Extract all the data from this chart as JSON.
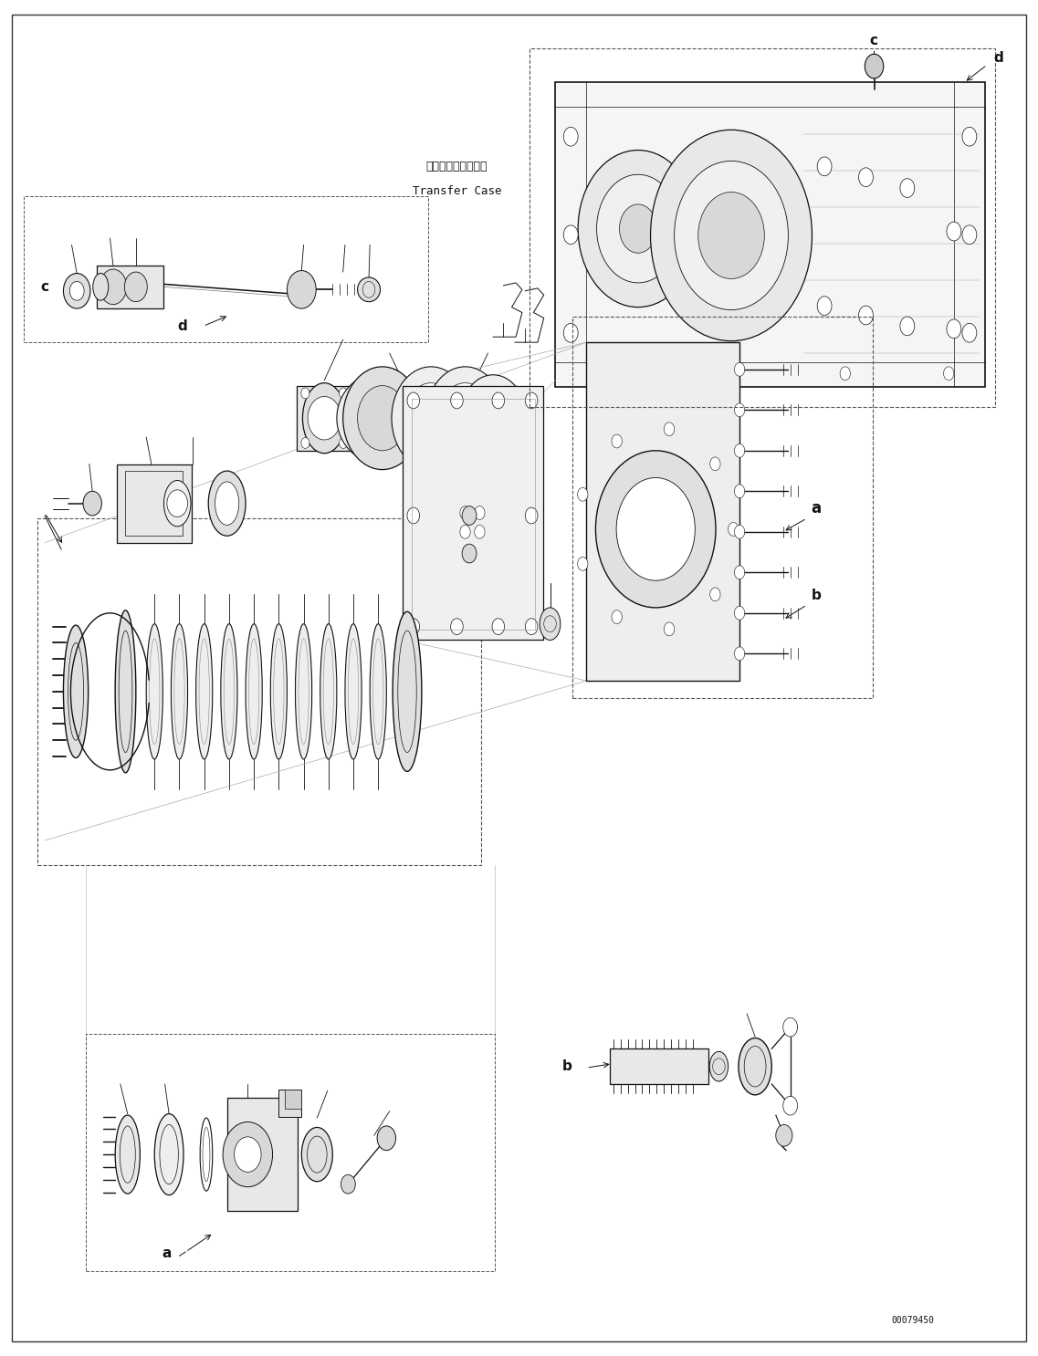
{
  "figure_width": 11.37,
  "figure_height": 14.86,
  "dpi": 100,
  "bg_color": "#ffffff",
  "part_number": "00079450",
  "transfer_case_jp": "トランスファケース",
  "transfer_case_en": "Transfer Case",
  "gray": "#111111",
  "mid_gray": "#555555",
  "light_gray": "#888888"
}
